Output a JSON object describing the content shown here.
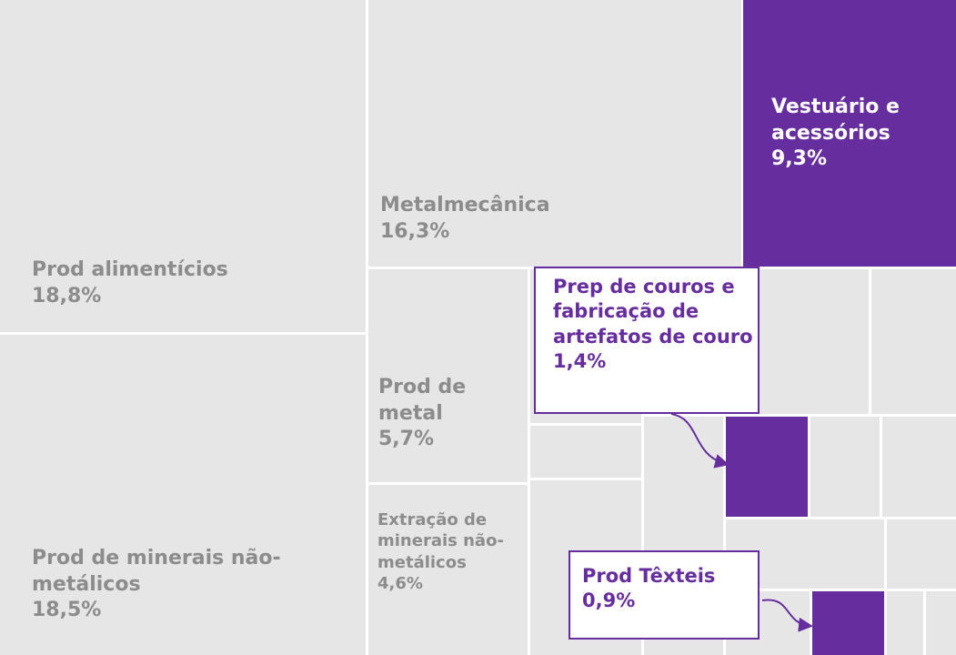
{
  "chart_data": {
    "type": "treemap",
    "categories": [
      "Prod alimentícios",
      "Prod de minerais não-metálicos",
      "Metalmecânica",
      "Vestuário e acessórios",
      "Prod de metal",
      "Extração de minerais não-metálicos",
      "Prep de couros e fabricação de artefatos de couro",
      "Prod Têxteis"
    ],
    "values": [
      18.8,
      18.5,
      16.3,
      9.3,
      5.7,
      4.6,
      1.4,
      0.9
    ],
    "value_labels": [
      "18,8%",
      "18,5%",
      "16,3%",
      "9,3%",
      "5,7%",
      "4,6%",
      "1,4%",
      "0,9%"
    ],
    "colors": [
      "#e6e6e6",
      "#e6e6e6",
      "#e6e6e6",
      "#662d9e",
      "#e6e6e6",
      "#e6e6e6",
      "#662d9e",
      "#662d9e"
    ]
  }
}
